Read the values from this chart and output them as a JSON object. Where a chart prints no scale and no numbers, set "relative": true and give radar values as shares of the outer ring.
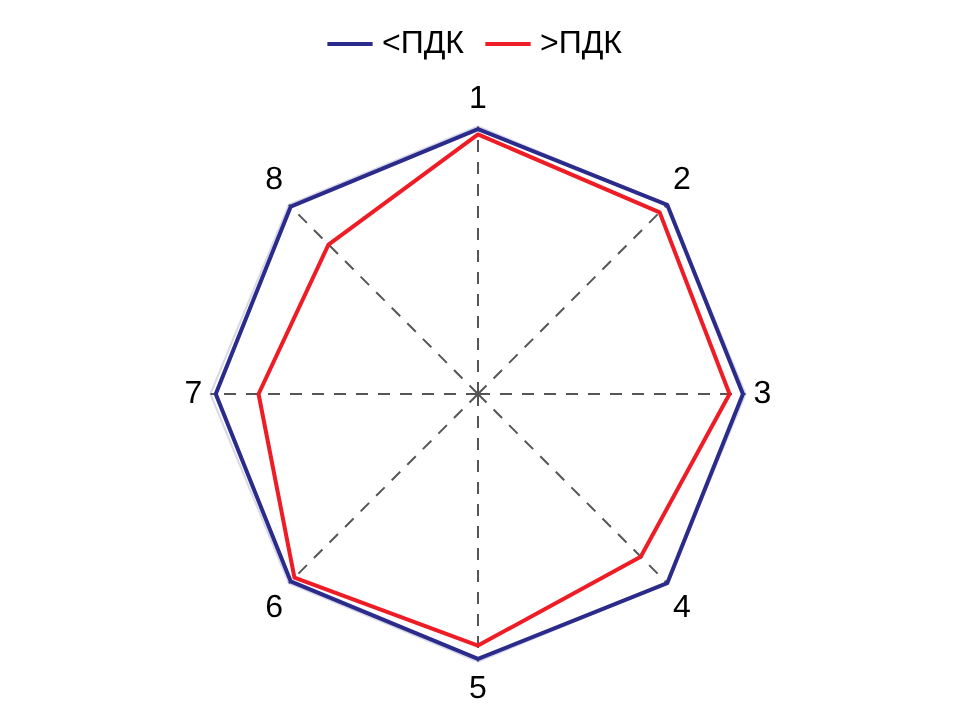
{
  "chart_data": {
    "type": "radar",
    "relative": true,
    "categories": [
      "1",
      "2",
      "3",
      "4",
      "5",
      "6",
      "7",
      "8"
    ],
    "legend": "top",
    "marker": "none",
    "series": [
      {
        "name": "<ПДК",
        "color": "#2b2b8c",
        "values": [
          0.99,
          1,
          0.99,
          1,
          0.99,
          0.99,
          0.98,
          0.99
        ]
      },
      {
        "name": ">ПДК",
        "color": "#ee1c25",
        "values": [
          0.97,
          0.96,
          0.94,
          0.86,
          0.94,
          0.97,
          0.82,
          0.79
        ]
      }
    ]
  }
}
